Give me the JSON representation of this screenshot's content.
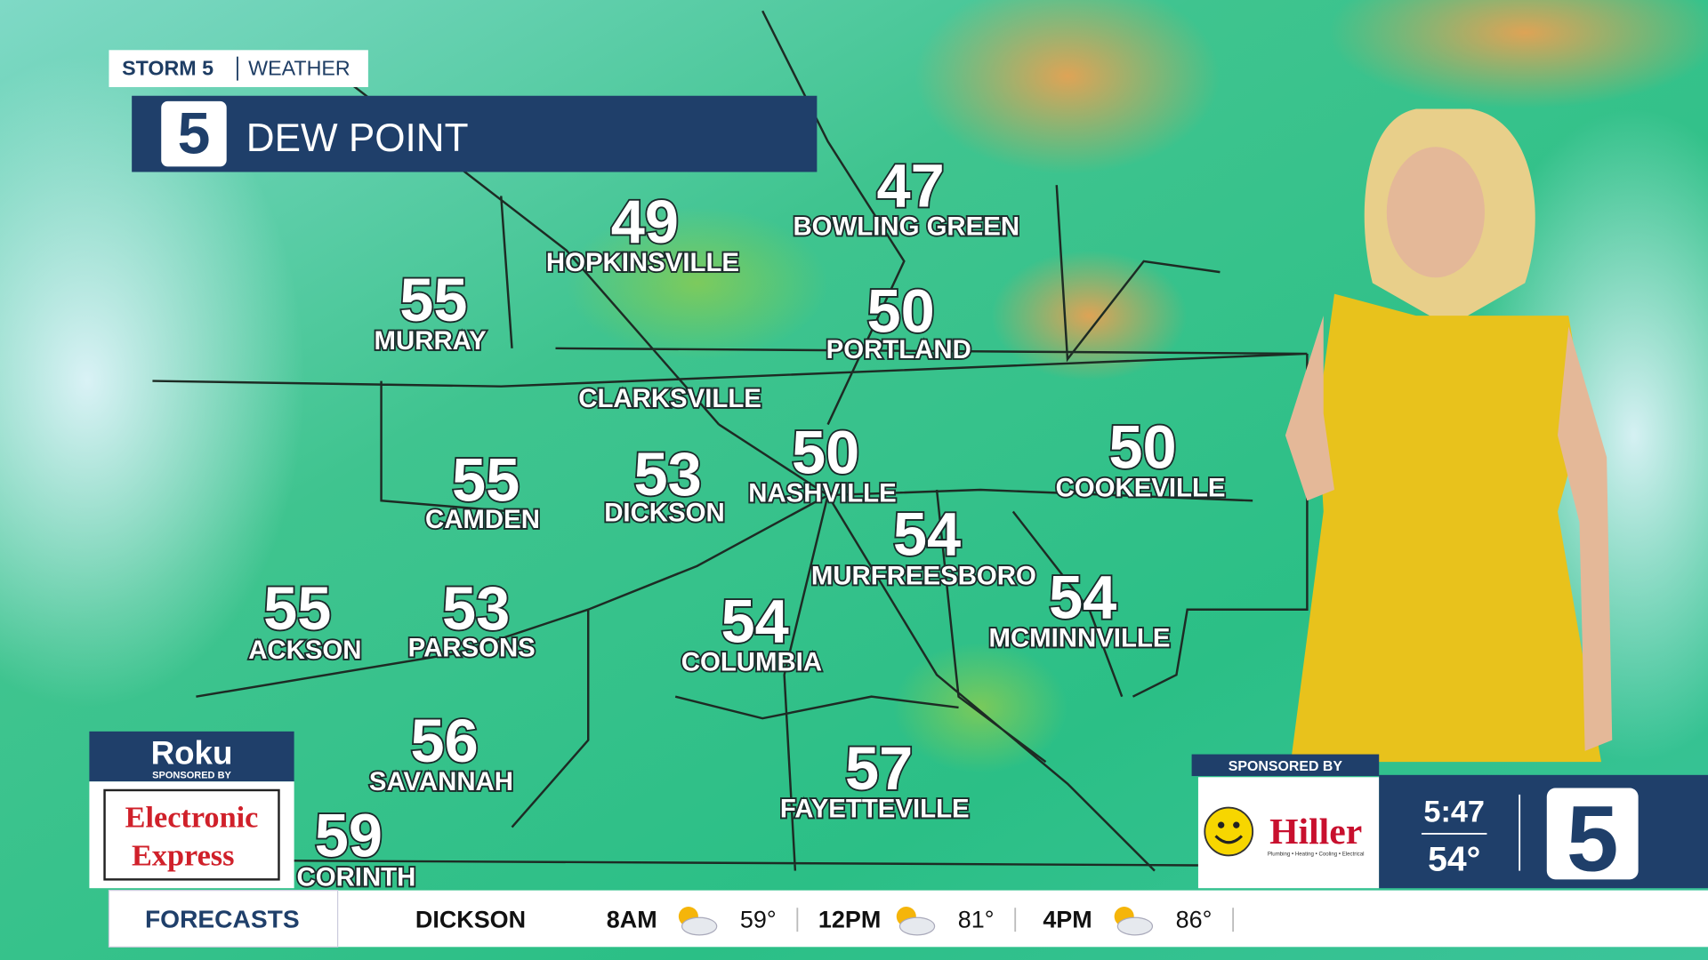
{
  "header": {
    "brand": "STORM 5",
    "section": "WEATHER",
    "logo": "5",
    "title": "DEW POINT"
  },
  "cities": [
    {
      "value": 49,
      "name": "HOPKINSVILLE"
    },
    {
      "value": 47,
      "name": "BOWLING GREEN"
    },
    {
      "value": 55,
      "name": "MURRAY"
    },
    {
      "value": 50,
      "name": "PORTLAND"
    },
    {
      "name": "CLARKSVILLE"
    },
    {
      "value": 55,
      "name": "CAMDEN"
    },
    {
      "value": 53,
      "name": "DICKSON"
    },
    {
      "value": 50,
      "name": "NASHVILLE"
    },
    {
      "value": 50,
      "name": "COOKEVILLE"
    },
    {
      "value": 54,
      "name": "MURFREESBORO"
    },
    {
      "value": 54,
      "name": "MCMINNVILLE"
    },
    {
      "value": 55,
      "name": "ACKSON"
    },
    {
      "value": 53,
      "name": "PARSONS"
    },
    {
      "value": 54,
      "name": "COLUMBIA"
    },
    {
      "value": 56,
      "name": "SAVANNAH"
    },
    {
      "value": 57,
      "name": "FAYETTEVILLE"
    },
    {
      "value": 59,
      "name": "CORINTH"
    }
  ],
  "sponsor_left": {
    "brand": "Roku",
    "label": "SPONSORED BY",
    "sponsor_line1": "Electronic",
    "sponsor_line2": "Express"
  },
  "sponsor_right": {
    "label": "SPONSORED BY",
    "sponsor": "Hiller",
    "tagline": "Plumbing • Heating • Cooling • Electrical"
  },
  "clock": {
    "time": "5:47",
    "temp": "54°",
    "logo": "5"
  },
  "forecast": {
    "label": "FORECASTS",
    "city": "DICKSON",
    "periods": [
      {
        "time": "8AM",
        "temp": "59°"
      },
      {
        "time": "12PM",
        "temp": "81°"
      },
      {
        "time": "4PM",
        "temp": "86°"
      }
    ]
  }
}
